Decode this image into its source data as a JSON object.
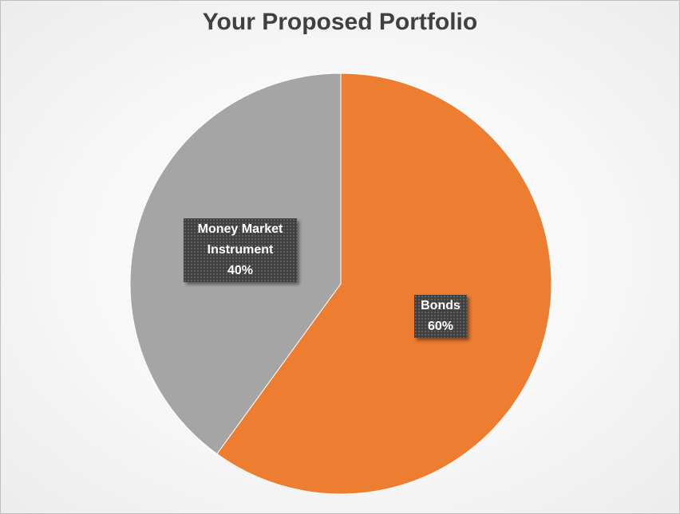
{
  "chart_data": {
    "type": "pie",
    "title": "Your Proposed Portfolio",
    "start_angle_deg": 0,
    "slices": [
      {
        "name": "Bonds",
        "value": 60,
        "label": "60%",
        "color": "#ED7D31"
      },
      {
        "name": "Money Market Instrument",
        "label_lines": [
          "Money Market",
          "Instrument"
        ],
        "value": 40,
        "label": "40%",
        "color": "#A5A5A5"
      }
    ]
  }
}
